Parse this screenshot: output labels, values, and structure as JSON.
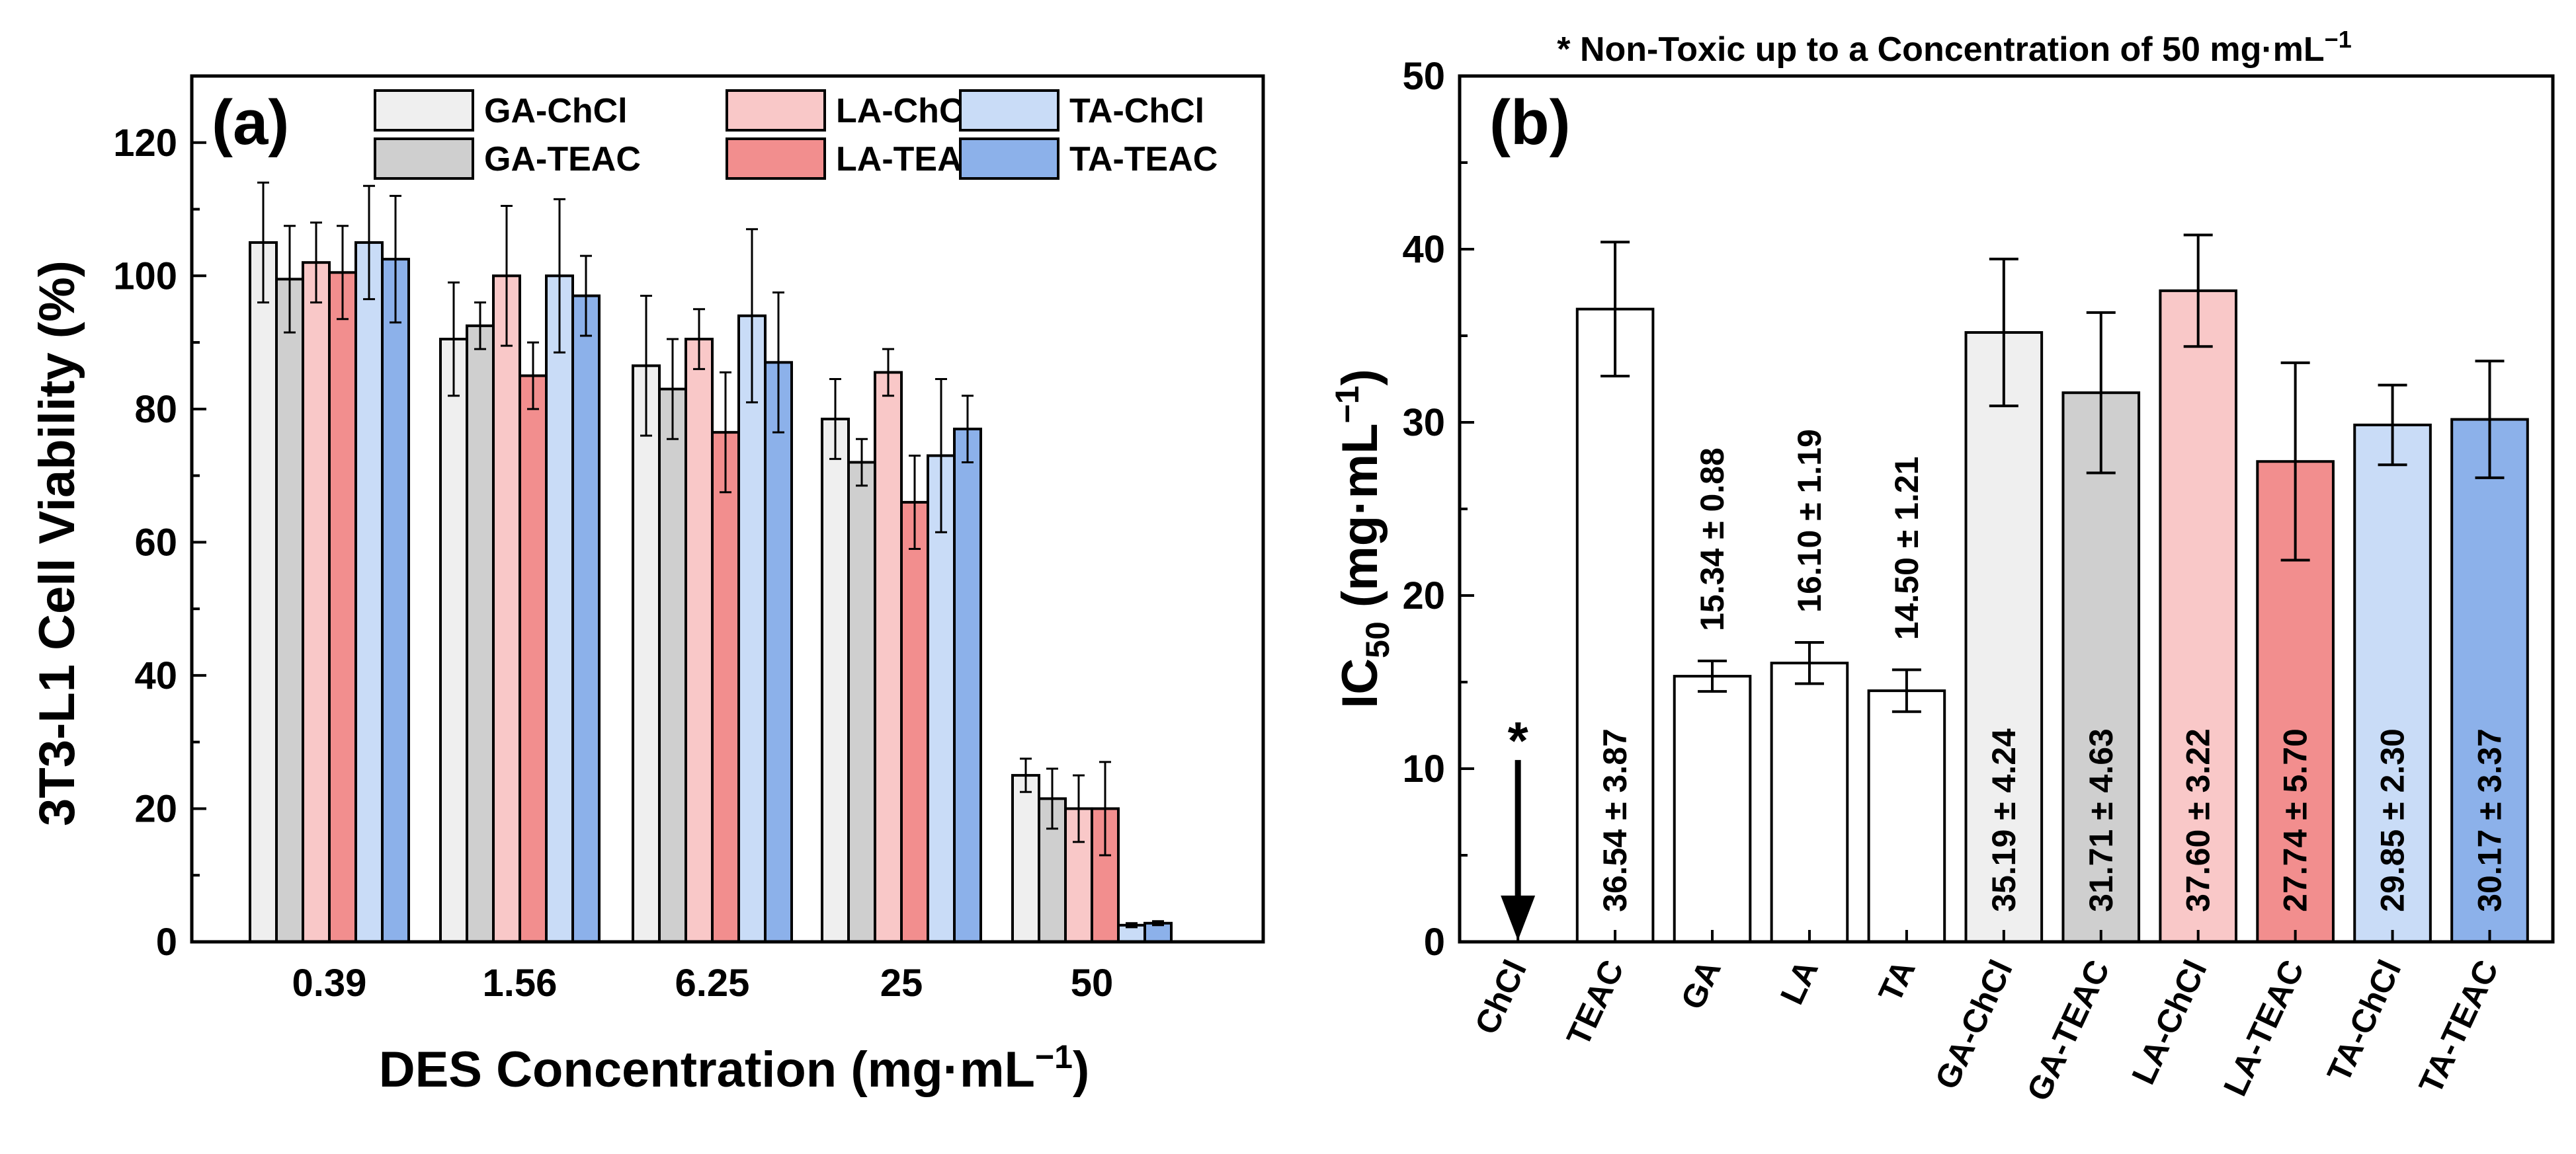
{
  "chart_data": [
    {
      "type": "bar",
      "panel_label": "(a)",
      "ylabel": "3T3-L1 Cell Viability (%)",
      "xlabel": "DES Concentration (mg·mL",
      "xlabel_sup": "−1",
      "xlabel_end": ")",
      "categories": [
        "0.39",
        "1.56",
        "6.25",
        "25",
        "50"
      ],
      "ylim": [
        0,
        130
      ],
      "yticks": [
        0,
        20,
        40,
        60,
        80,
        100,
        120
      ],
      "legend_position": "top-right",
      "series": [
        {
          "name": "GA-ChCl",
          "color": "#efefef",
          "values": [
            105,
            90.5,
            86.5,
            78.5,
            25
          ],
          "errors": [
            9,
            8.5,
            10.5,
            6,
            2.5
          ]
        },
        {
          "name": "GA-TEAC",
          "color": "#cfcfcf",
          "values": [
            99.5,
            92.5,
            83,
            72,
            21.5
          ],
          "errors": [
            8,
            3.5,
            7.5,
            3.5,
            4.5
          ]
        },
        {
          "name": "LA-ChCl",
          "color": "#f9c8c8",
          "values": [
            102,
            100,
            90.5,
            85.5,
            20
          ],
          "errors": [
            6,
            10.5,
            4.5,
            3.5,
            5
          ]
        },
        {
          "name": "LA-TEAC",
          "color": "#f28e8e",
          "values": [
            100.5,
            85,
            76.5,
            66,
            20
          ],
          "errors": [
            7,
            5,
            9,
            7,
            7
          ]
        },
        {
          "name": "TA-ChCl",
          "color": "#c9dcf7",
          "values": [
            105,
            100,
            94,
            73,
            2.5
          ],
          "errors": [
            8.5,
            11.5,
            13,
            11.5,
            0.3
          ]
        },
        {
          "name": "TA-TEAC",
          "color": "#8cb1ea",
          "values": [
            102.5,
            97,
            87,
            77,
            2.8
          ],
          "errors": [
            9.5,
            6,
            10.5,
            5,
            0.3
          ]
        }
      ]
    },
    {
      "type": "bar",
      "panel_label": "(b)",
      "title": "* Non-Toxic up to a Concentration of 50 mg·mL",
      "title_sup": "−1",
      "ylabel_main": "IC",
      "ylabel_sub": "50",
      "ylabel_rest": " (mg·mL",
      "ylabel_sup": "−1",
      "ylabel_end": ")",
      "ylim": [
        0,
        50
      ],
      "yticks": [
        0,
        10,
        20,
        30,
        40,
        50
      ],
      "annotation": "*",
      "categories": [
        "ChCl",
        "TEAC",
        "GA",
        "LA",
        "TA",
        "GA-ChCl",
        "GA-TEAC",
        "LA-ChCl",
        "LA-TEAC",
        "TA-ChCl",
        "TA-TEAC"
      ],
      "values": [
        null,
        36.54,
        15.34,
        16.1,
        14.5,
        35.19,
        31.71,
        37.6,
        27.74,
        29.85,
        30.17
      ],
      "errors": [
        null,
        3.87,
        0.88,
        1.19,
        1.21,
        4.24,
        4.63,
        3.22,
        5.7,
        2.3,
        3.37
      ],
      "labels": [
        "",
        "36.54 ± 3.87",
        "15.34 ± 0.88",
        "16.10 ± 1.19",
        "14.50 ± 1.21",
        "35.19 ± 4.24",
        "31.71 ± 4.63",
        "37.60 ± 3.22",
        "27.74 ± 5.70",
        "29.85 ± 2.30",
        "30.17 ± 3.37"
      ],
      "colors": [
        "#ffffff",
        "#ffffff",
        "#ffffff",
        "#ffffff",
        "#ffffff",
        "#efefef",
        "#cfcfcf",
        "#f9c8c8",
        "#f28e8e",
        "#c9dcf7",
        "#8cb1ea"
      ]
    }
  ]
}
